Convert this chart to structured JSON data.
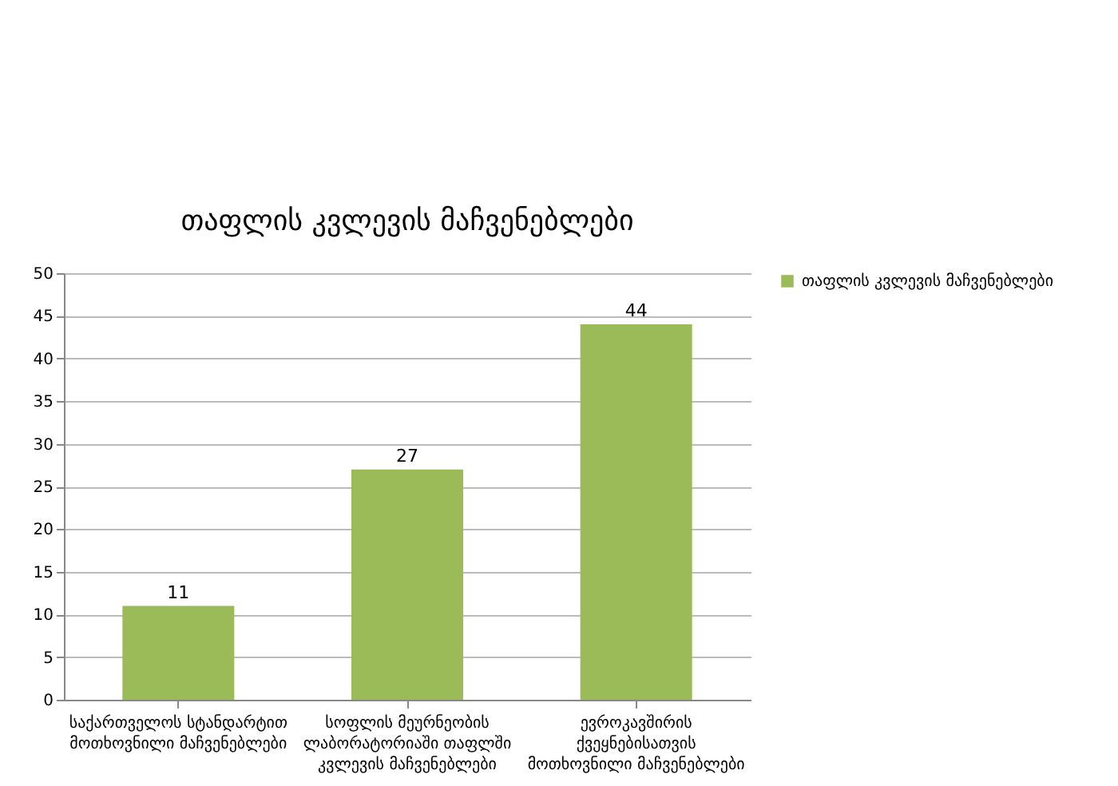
{
  "chart_data": {
    "type": "bar",
    "title": "თაფლის კვლევის მაჩვენებლები",
    "categories": [
      "საქართველოს სტანდარტით მოთხოვნილი მაჩვენებლები",
      "სოფლის მეურნეობის ლაბორატორიაში თაფლში კვლევის მაჩვენებლები",
      "ევროკავშირის ქვეყნებისათვის მოთხოვნილი მაჩვენებლები"
    ],
    "series": [
      {
        "name": "თაფლის კვლევის მაჩვენებლები",
        "color": "#9bbb59",
        "values": [
          11,
          27,
          44
        ]
      }
    ],
    "ylim": [
      0,
      50
    ],
    "yticks": [
      0,
      5,
      10,
      15,
      20,
      25,
      30,
      35,
      40,
      45,
      50
    ],
    "grid": "y",
    "legend": "right",
    "data_labels": true
  }
}
